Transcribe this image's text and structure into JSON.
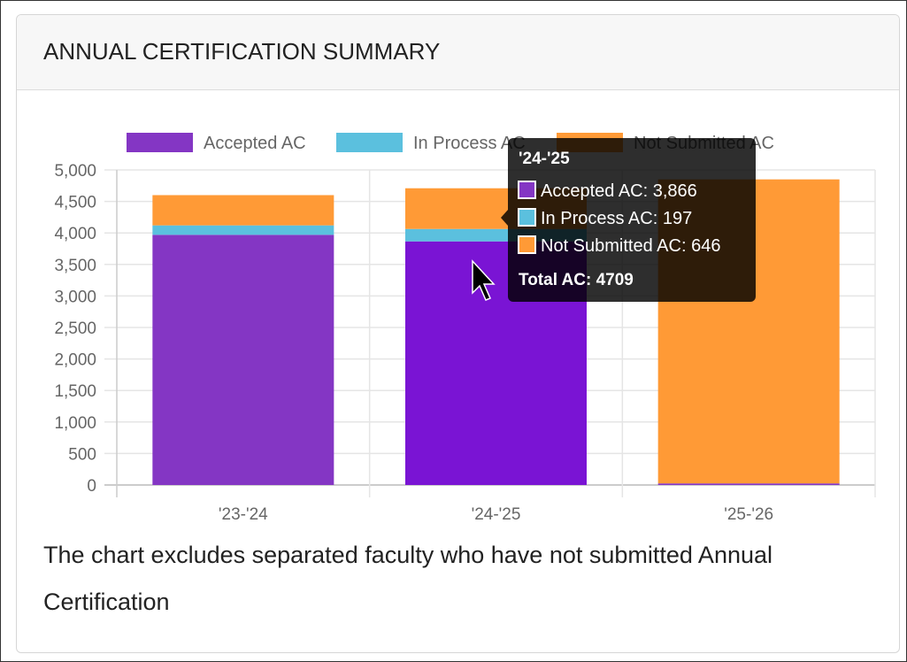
{
  "card": {
    "title": "ANNUAL CERTIFICATION SUMMARY"
  },
  "note": "The chart excludes separated faculty who have not submitted Annual Certification",
  "chart_data": {
    "type": "bar",
    "stacked": true,
    "categories": [
      "'23-'24",
      "'24-'25",
      "'25-'26"
    ],
    "series": [
      {
        "name": "Accepted AC",
        "color": "#8436c4",
        "values": [
          3970,
          3866,
          25
        ]
      },
      {
        "name": "In Process AC",
        "color": "#5bc0de",
        "values": [
          150,
          197,
          0
        ]
      },
      {
        "name": "Not Submitted AC",
        "color": "#ff9a36",
        "values": [
          480,
          646,
          4825
        ]
      }
    ],
    "ylim": [
      0,
      5000
    ],
    "yticks": [
      "0",
      "500",
      "1,000",
      "1,500",
      "2,000",
      "2,500",
      "3,000",
      "3,500",
      "4,000",
      "4,500",
      "5,000"
    ],
    "grid": true,
    "legend": "top",
    "tooltip": {
      "title": "'24-'25",
      "items": [
        "Accepted AC: 3,866",
        "In Process AC: 197",
        "Not Submitted AC: 646"
      ],
      "footer": "Total AC: 4709"
    }
  }
}
